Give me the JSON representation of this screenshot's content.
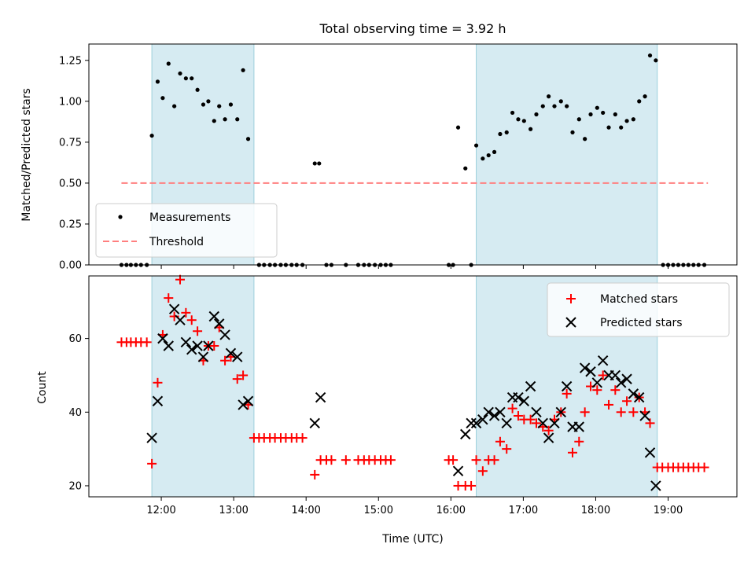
{
  "chart_data": [
    {
      "type": "scatter",
      "title": "Total observing time = 3.92 h",
      "xlabel": "",
      "ylabel": "Matched/Predicted stars",
      "xlim": [
        11.0,
        19.95
      ],
      "ylim": [
        0.0,
        1.35
      ],
      "yticks": [
        0.0,
        0.25,
        0.5,
        0.75,
        1.0,
        1.25
      ],
      "ytick_labels": [
        "0.00",
        "0.25",
        "0.50",
        "0.75",
        "1.00",
        "1.25"
      ],
      "xticks": [
        12,
        13,
        14,
        15,
        16,
        17,
        18,
        19
      ],
      "shaded_intervals": [
        [
          11.87,
          13.28
        ],
        [
          16.35,
          18.85
        ]
      ],
      "legend_position": "lower-left",
      "series": [
        {
          "name": "Measurements",
          "marker": "dot",
          "color": "#000000",
          "points": [
            [
              11.45,
              0.0
            ],
            [
              11.52,
              0.0
            ],
            [
              11.58,
              0.0
            ],
            [
              11.65,
              0.0
            ],
            [
              11.72,
              0.0
            ],
            [
              11.8,
              0.0
            ],
            [
              11.87,
              0.79
            ],
            [
              11.95,
              1.12
            ],
            [
              12.02,
              1.02
            ],
            [
              12.1,
              1.23
            ],
            [
              12.18,
              0.97
            ],
            [
              12.26,
              1.17
            ],
            [
              12.34,
              1.14
            ],
            [
              12.42,
              1.14
            ],
            [
              12.5,
              1.07
            ],
            [
              12.58,
              0.98
            ],
            [
              12.65,
              1.0
            ],
            [
              12.73,
              0.88
            ],
            [
              12.8,
              0.97
            ],
            [
              12.88,
              0.89
            ],
            [
              12.96,
              0.98
            ],
            [
              13.05,
              0.89
            ],
            [
              13.13,
              1.19
            ],
            [
              13.2,
              0.77
            ],
            [
              13.35,
              0.0
            ],
            [
              13.42,
              0.0
            ],
            [
              13.5,
              0.0
            ],
            [
              13.57,
              0.0
            ],
            [
              13.65,
              0.0
            ],
            [
              13.72,
              0.0
            ],
            [
              13.8,
              0.0
            ],
            [
              13.87,
              0.0
            ],
            [
              13.95,
              0.0
            ],
            [
              14.12,
              0.62
            ],
            [
              14.18,
              0.62
            ],
            [
              14.28,
              0.0
            ],
            [
              14.35,
              0.0
            ],
            [
              14.55,
              0.0
            ],
            [
              14.72,
              0.0
            ],
            [
              14.8,
              0.0
            ],
            [
              14.87,
              0.0
            ],
            [
              14.95,
              0.0
            ],
            [
              15.03,
              0.0
            ],
            [
              15.1,
              0.0
            ],
            [
              15.17,
              0.0
            ],
            [
              15.97,
              0.0
            ],
            [
              16.03,
              0.0
            ],
            [
              16.1,
              0.84
            ],
            [
              16.2,
              0.59
            ],
            [
              16.28,
              0.0
            ],
            [
              16.35,
              0.73
            ],
            [
              16.44,
              0.65
            ],
            [
              16.52,
              0.67
            ],
            [
              16.6,
              0.69
            ],
            [
              16.68,
              0.8
            ],
            [
              16.77,
              0.81
            ],
            [
              16.85,
              0.93
            ],
            [
              16.93,
              0.89
            ],
            [
              17.01,
              0.88
            ],
            [
              17.1,
              0.83
            ],
            [
              17.18,
              0.92
            ],
            [
              17.27,
              0.97
            ],
            [
              17.35,
              1.03
            ],
            [
              17.43,
              0.97
            ],
            [
              17.52,
              1.0
            ],
            [
              17.6,
              0.97
            ],
            [
              17.68,
              0.81
            ],
            [
              17.77,
              0.89
            ],
            [
              17.85,
              0.77
            ],
            [
              17.93,
              0.92
            ],
            [
              18.02,
              0.96
            ],
            [
              18.1,
              0.93
            ],
            [
              18.18,
              0.84
            ],
            [
              18.27,
              0.92
            ],
            [
              18.35,
              0.84
            ],
            [
              18.43,
              0.88
            ],
            [
              18.52,
              0.89
            ],
            [
              18.6,
              1.0
            ],
            [
              18.68,
              1.03
            ],
            [
              18.75,
              1.28
            ],
            [
              18.83,
              1.25
            ],
            [
              18.93,
              0.0
            ],
            [
              19.0,
              0.0
            ],
            [
              19.07,
              0.0
            ],
            [
              19.14,
              0.0
            ],
            [
              19.21,
              0.0
            ],
            [
              19.28,
              0.0
            ],
            [
              19.35,
              0.0
            ],
            [
              19.42,
              0.0
            ],
            [
              19.5,
              0.0
            ]
          ]
        },
        {
          "name": "Threshold",
          "marker": "dashed-line",
          "color": "#ff7f7f",
          "points": [
            [
              11.45,
              0.5
            ],
            [
              19.55,
              0.5
            ]
          ]
        }
      ]
    },
    {
      "type": "scatter",
      "title": "",
      "xlabel": "Time (UTC)",
      "ylabel": "Count",
      "xlim": [
        11.0,
        19.95
      ],
      "ylim": [
        17,
        77
      ],
      "yticks": [
        20,
        40,
        60
      ],
      "ytick_labels": [
        "20",
        "40",
        "60"
      ],
      "xticks": [
        12,
        13,
        14,
        15,
        16,
        17,
        18,
        19
      ],
      "xtick_labels": [
        "12:00",
        "13:00",
        "14:00",
        "15:00",
        "16:00",
        "17:00",
        "18:00",
        "19:00"
      ],
      "shaded_intervals": [
        [
          11.87,
          13.28
        ],
        [
          16.35,
          18.85
        ]
      ],
      "legend_position": "top-right",
      "series": [
        {
          "name": "Matched stars",
          "marker": "plus",
          "color": "#ff0000",
          "points": [
            [
              11.45,
              59
            ],
            [
              11.52,
              59
            ],
            [
              11.58,
              59
            ],
            [
              11.65,
              59
            ],
            [
              11.72,
              59
            ],
            [
              11.8,
              59
            ],
            [
              11.87,
              26
            ],
            [
              11.95,
              48
            ],
            [
              12.02,
              61
            ],
            [
              12.1,
              71
            ],
            [
              12.18,
              66
            ],
            [
              12.26,
              76
            ],
            [
              12.34,
              67
            ],
            [
              12.42,
              65
            ],
            [
              12.5,
              62
            ],
            [
              12.58,
              54
            ],
            [
              12.65,
              58
            ],
            [
              12.73,
              58
            ],
            [
              12.8,
              63
            ],
            [
              12.88,
              54
            ],
            [
              12.96,
              55
            ],
            [
              13.05,
              49
            ],
            [
              13.13,
              50
            ],
            [
              13.2,
              42
            ],
            [
              13.28,
              33
            ],
            [
              13.35,
              33
            ],
            [
              13.42,
              33
            ],
            [
              13.5,
              33
            ],
            [
              13.57,
              33
            ],
            [
              13.65,
              33
            ],
            [
              13.72,
              33
            ],
            [
              13.8,
              33
            ],
            [
              13.87,
              33
            ],
            [
              13.95,
              33
            ],
            [
              14.12,
              23
            ],
            [
              14.2,
              27
            ],
            [
              14.28,
              27
            ],
            [
              14.35,
              27
            ],
            [
              14.55,
              27
            ],
            [
              14.72,
              27
            ],
            [
              14.8,
              27
            ],
            [
              14.87,
              27
            ],
            [
              14.95,
              27
            ],
            [
              15.03,
              27
            ],
            [
              15.1,
              27
            ],
            [
              15.17,
              27
            ],
            [
              15.97,
              27
            ],
            [
              16.03,
              27
            ],
            [
              16.1,
              20
            ],
            [
              16.2,
              20
            ],
            [
              16.28,
              20
            ],
            [
              16.35,
              27
            ],
            [
              16.44,
              24
            ],
            [
              16.52,
              27
            ],
            [
              16.6,
              27
            ],
            [
              16.68,
              32
            ],
            [
              16.77,
              30
            ],
            [
              16.85,
              41
            ],
            [
              16.93,
              39
            ],
            [
              17.01,
              38
            ],
            [
              17.1,
              38
            ],
            [
              17.18,
              37
            ],
            [
              17.27,
              36
            ],
            [
              17.35,
              35
            ],
            [
              17.43,
              38
            ],
            [
              17.52,
              40
            ],
            [
              17.6,
              45
            ],
            [
              17.68,
              29
            ],
            [
              17.77,
              32
            ],
            [
              17.85,
              40
            ],
            [
              17.93,
              47
            ],
            [
              18.02,
              46
            ],
            [
              18.1,
              50
            ],
            [
              18.18,
              42
            ],
            [
              18.27,
              46
            ],
            [
              18.35,
              40
            ],
            [
              18.43,
              43
            ],
            [
              18.52,
              40
            ],
            [
              18.6,
              44
            ],
            [
              18.68,
              40
            ],
            [
              18.75,
              37
            ],
            [
              18.85,
              25
            ],
            [
              18.92,
              25
            ],
            [
              19.0,
              25
            ],
            [
              19.07,
              25
            ],
            [
              19.14,
              25
            ],
            [
              19.21,
              25
            ],
            [
              19.28,
              25
            ],
            [
              19.35,
              25
            ],
            [
              19.42,
              25
            ],
            [
              19.5,
              25
            ]
          ]
        },
        {
          "name": "Predicted stars",
          "marker": "x",
          "color": "#000000",
          "points": [
            [
              11.87,
              33
            ],
            [
              11.95,
              43
            ],
            [
              12.02,
              60
            ],
            [
              12.1,
              58
            ],
            [
              12.18,
              68
            ],
            [
              12.26,
              65
            ],
            [
              12.34,
              59
            ],
            [
              12.42,
              57
            ],
            [
              12.5,
              58
            ],
            [
              12.58,
              55
            ],
            [
              12.65,
              58
            ],
            [
              12.73,
              66
            ],
            [
              12.8,
              64
            ],
            [
              12.88,
              61
            ],
            [
              12.96,
              56
            ],
            [
              13.05,
              55
            ],
            [
              13.13,
              42
            ],
            [
              13.2,
              43
            ],
            [
              14.12,
              37
            ],
            [
              14.2,
              44
            ],
            [
              16.1,
              24
            ],
            [
              16.2,
              34
            ],
            [
              16.28,
              37
            ],
            [
              16.35,
              37
            ],
            [
              16.44,
              38
            ],
            [
              16.52,
              40
            ],
            [
              16.6,
              39
            ],
            [
              16.68,
              40
            ],
            [
              16.77,
              37
            ],
            [
              16.85,
              44
            ],
            [
              16.93,
              44
            ],
            [
              17.01,
              43
            ],
            [
              17.1,
              47
            ],
            [
              17.18,
              40
            ],
            [
              17.27,
              37
            ],
            [
              17.35,
              33
            ],
            [
              17.43,
              37
            ],
            [
              17.52,
              40
            ],
            [
              17.6,
              47
            ],
            [
              17.68,
              36
            ],
            [
              17.77,
              36
            ],
            [
              17.85,
              52
            ],
            [
              17.93,
              51
            ],
            [
              18.02,
              48
            ],
            [
              18.1,
              54
            ],
            [
              18.18,
              50
            ],
            [
              18.27,
              50
            ],
            [
              18.35,
              48
            ],
            [
              18.43,
              49
            ],
            [
              18.52,
              45
            ],
            [
              18.6,
              44
            ],
            [
              18.68,
              39
            ],
            [
              18.75,
              29
            ],
            [
              18.83,
              20
            ]
          ]
        }
      ]
    }
  ]
}
